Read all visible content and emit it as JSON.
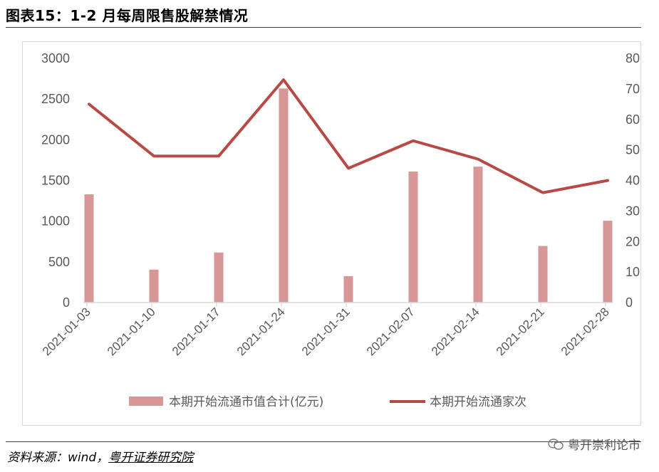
{
  "title": "图表15：1-2 月每周限售股解禁情况",
  "source": {
    "prefix": "资料来源：wind，",
    "link": "粤开证券研究院"
  },
  "watermark": "粤开崇利论市",
  "watermark_icon": "wechat-icon",
  "colors": {
    "bar": "#d79797",
    "line": "#b84a46",
    "axis": "#d9d9d9",
    "tick": "#595959"
  },
  "chart_data": {
    "type": "bar",
    "categories": [
      "2021-01-03",
      "2021-01-10",
      "2021-01-17",
      "2021-01-24",
      "2021-01-31",
      "2021-02-07",
      "2021-02-14",
      "2021-02-21",
      "2021-02-28"
    ],
    "series": [
      {
        "name": "本期开始流通市值合计(亿元)",
        "type": "bar",
        "axis": "left",
        "values": [
          1330,
          405,
          615,
          2630,
          325,
          1610,
          1670,
          695,
          1005
        ]
      },
      {
        "name": "本期开始流通家次",
        "type": "line",
        "axis": "right",
        "values": [
          65,
          48,
          48,
          73,
          44,
          53,
          47,
          36,
          40
        ]
      }
    ],
    "y_left": {
      "min": 0,
      "max": 3000,
      "ticks": [
        0,
        500,
        1000,
        1500,
        2000,
        2500,
        3000
      ]
    },
    "y_right": {
      "min": 0,
      "max": 80,
      "ticks": [
        0,
        10,
        20,
        30,
        40,
        50,
        60,
        70,
        80
      ]
    },
    "legend_position": "bottom",
    "grid": false
  }
}
